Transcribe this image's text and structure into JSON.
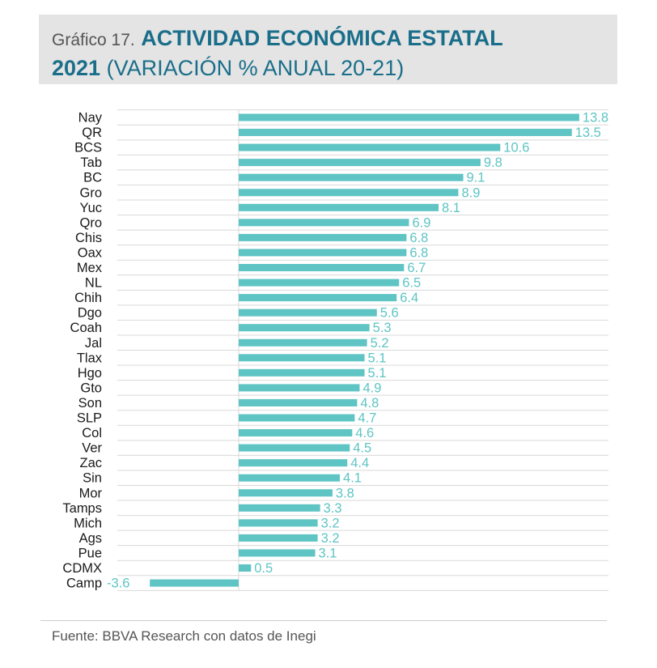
{
  "title": {
    "prefix": "Gráfico 17.",
    "bold_line1": "ACTIVIDAD ECONÓMICA ESTATAL",
    "bold_line2": "2021",
    "rest_line2": "(VARIACIÓN % ANUAL 20-21)"
  },
  "source": "Fuente: BBVA Research con datos de Inegi",
  "colors": {
    "bar": "#5fc4c4",
    "label": "#5fc4c4",
    "grid": "#d9d9d9",
    "category": "#1a1a1a"
  },
  "chart_data": {
    "type": "bar",
    "orientation": "horizontal",
    "categories": [
      "Nay",
      "QR",
      "BCS",
      "Tab",
      "BC",
      "Gro",
      "Yuc",
      "Qro",
      "Chis",
      "Oax",
      "Mex",
      "NL",
      "Chih",
      "Dgo",
      "Coah",
      "Jal",
      "Tlax",
      "Hgo",
      "Gto",
      "Son",
      "SLP",
      "Col",
      "Ver",
      "Zac",
      "Sin",
      "Mor",
      "Tamps",
      "Mich",
      "Ags",
      "Pue",
      "CDMX",
      "Camp"
    ],
    "values": [
      13.8,
      13.5,
      10.6,
      9.8,
      9.1,
      8.9,
      8.1,
      6.9,
      6.8,
      6.8,
      6.7,
      6.5,
      6.4,
      5.6,
      5.3,
      5.2,
      5.1,
      5.1,
      4.9,
      4.8,
      4.7,
      4.6,
      4.5,
      4.4,
      4.1,
      3.8,
      3.3,
      3.2,
      3.2,
      3.1,
      0.5,
      -3.6
    ],
    "labels": [
      "13.8",
      "13.5",
      "10.6",
      "9.8",
      "9.1",
      "8.9",
      "8.1",
      "6.9",
      "6.8",
      "6.8",
      "6.7",
      "6.5",
      "6.4",
      "5.6",
      "5.3",
      "5.2",
      "5.1",
      "5.1",
      "4.9",
      "4.8",
      "4.7",
      "4.6",
      "4.5",
      "4.4",
      "4.1",
      "3.8",
      "3.3",
      "3.2",
      "3.2",
      "3.1",
      "0.5",
      "-3.6"
    ],
    "xlim": [
      -5,
      14
    ],
    "grid": true,
    "legend": "none"
  }
}
